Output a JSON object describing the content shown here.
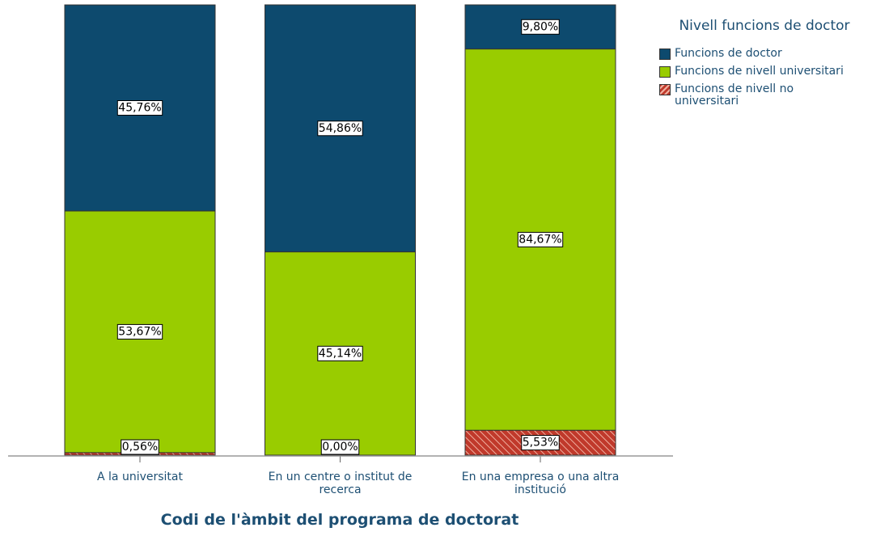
{
  "chart_data": {
    "type": "stacked_bar",
    "x_label": "Codi de l'àmbit del programa de doctorat",
    "legend_title": "Nivell funcions de doctor",
    "legend_position": "right",
    "categories": [
      "A la universitat",
      "En un centre o institut de recerca",
      "En una empresa o una altra institució"
    ],
    "ylim": [
      0,
      100
    ],
    "series": [
      {
        "name": "Funcions de doctor",
        "color": "#0d4a6e",
        "values": [
          45.76,
          54.86,
          9.8
        ],
        "value_labels": [
          "45,76%",
          "54,86%",
          "9,80%"
        ]
      },
      {
        "name": "Funcions de nivell universitari",
        "color": "#99cc00",
        "values": [
          53.67,
          45.14,
          84.67
        ],
        "value_labels": [
          "53,67%",
          "45,14%",
          "84,67%"
        ]
      },
      {
        "name": "Funcions de nivell no universitari",
        "color": "#c0392b",
        "hatch": true,
        "values": [
          0.56,
          0.0,
          5.53
        ],
        "value_labels": [
          "0,56%",
          "0,00%",
          "5,53%"
        ]
      }
    ]
  }
}
